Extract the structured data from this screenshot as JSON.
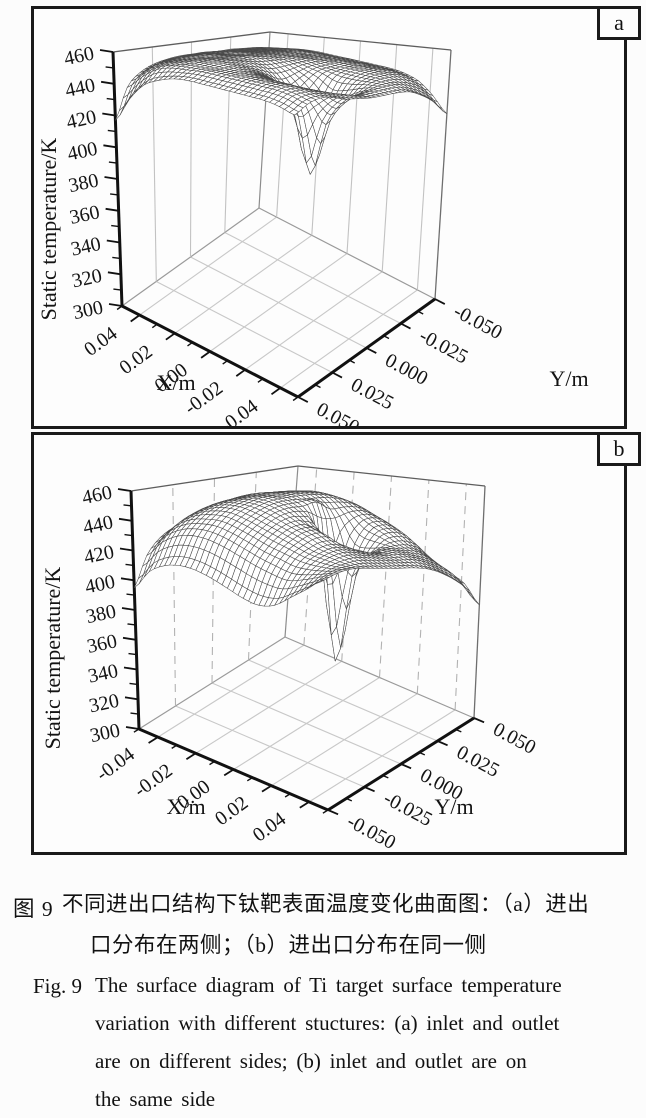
{
  "figure": {
    "panel_a_label": "a",
    "panel_b_label": "b",
    "caption_zh": {
      "label": "图 9",
      "lines": [
        "不同进出口结构下钛靶表面温度变化曲面图：（a）进出",
        "口分布在两侧；（b）进出口分布在同一侧"
      ]
    },
    "caption_en": {
      "label": "Fig. 9",
      "lines": [
        "The surface diagram of Ti target surface temperature",
        "variation with different stuctures: (a) inlet and outlet",
        "are on different sides; (b) inlet and outlet are on",
        "the same side"
      ]
    }
  },
  "chart_data": [
    {
      "type": "surface3d",
      "panel": "a",
      "z_axis": {
        "title": "Static temperature/K",
        "min": 300,
        "max": 460,
        "tick_step": 20,
        "tick_labels": [
          "300",
          "320",
          "340",
          "360",
          "380",
          "400",
          "420",
          "440",
          "460"
        ]
      },
      "x_axis": {
        "title": "X/m",
        "tick_labels": [
          "0.04",
          "0.02",
          "0.00",
          "-0.02",
          "-0.04"
        ],
        "range_left_corner_to_front": [
          0.05,
          -0.05
        ]
      },
      "y_axis": {
        "title": "Y/m",
        "tick_labels": [
          "0.050",
          "0.025",
          "0.000",
          "-0.025",
          "-0.050"
        ],
        "range_front_corner_to_right": [
          0.05,
          -0.05
        ]
      },
      "wall_dash": false,
      "z_grid_note": "temperature K; rows follow X from left corner to front corner, cols follow Y from front corner to right corner; deep funnel dip near x=-0.015,y=0 reaching ~387 K",
      "z_grid": [
        [
          417,
          436,
          444,
          448,
          450,
          451,
          451,
          451,
          450,
          450,
          449,
          448,
          446
        ],
        [
          432,
          444,
          450,
          452,
          453,
          453,
          453,
          453,
          452,
          451,
          450,
          449,
          447
        ],
        [
          442,
          450,
          453,
          454,
          455,
          455,
          454,
          454,
          453,
          452,
          451,
          450,
          448
        ],
        [
          446,
          452,
          454,
          455,
          455,
          455,
          454,
          454,
          453,
          452,
          451,
          450,
          448
        ],
        [
          448,
          452,
          454,
          455,
          455,
          454,
          454,
          453,
          452,
          451,
          450,
          449,
          447
        ],
        [
          448,
          452,
          453,
          454,
          453,
          452,
          450,
          450,
          450,
          450,
          449,
          448,
          446
        ],
        [
          447,
          451,
          452,
          452,
          450,
          446,
          442,
          444,
          447,
          448,
          448,
          447,
          445
        ],
        [
          446,
          450,
          451,
          450,
          446,
          438,
          426,
          436,
          444,
          446,
          447,
          446,
          444
        ],
        [
          445,
          449,
          450,
          448,
          442,
          424,
          387,
          422,
          440,
          445,
          446,
          445,
          443
        ],
        [
          444,
          448,
          449,
          447,
          442,
          431,
          419,
          429,
          440,
          444,
          445,
          444,
          441
        ],
        [
          443,
          447,
          448,
          446,
          443,
          438,
          433,
          436,
          441,
          443,
          443,
          441,
          437
        ],
        [
          441,
          445,
          446,
          445,
          443,
          441,
          439,
          440,
          441,
          441,
          439,
          435,
          429
        ],
        [
          438,
          442,
          444,
          443,
          441,
          440,
          439,
          439,
          439,
          438,
          434,
          428,
          419
        ]
      ]
    },
    {
      "type": "surface3d",
      "panel": "b",
      "z_axis": {
        "title": "Static temperature/K",
        "min": 300,
        "max": 460,
        "tick_step": 20,
        "tick_labels": [
          "300",
          "320",
          "340",
          "360",
          "380",
          "400",
          "420",
          "440",
          "460"
        ]
      },
      "x_axis": {
        "title": "X/m",
        "tick_labels": [
          "-0.04",
          "-0.02",
          "0.00",
          "0.02",
          "0.04"
        ],
        "range_left_corner_to_front": [
          -0.05,
          0.05
        ]
      },
      "y_axis": {
        "title": "Y/m",
        "tick_labels": [
          "-0.050",
          "-0.025",
          "0.000",
          "0.025",
          "0.050"
        ],
        "range_front_corner_to_right": [
          -0.05,
          0.05
        ]
      },
      "wall_dash": true,
      "z_grid_note": "temperature K; dome ~453 K at centre, left corner droops to ~395 K, sharp dip at right corner ~380 K, deep funnel near x=0.01,y=0 reaching ~342 K",
      "z_grid": [
        [
          395,
          414,
          424,
          429,
          432,
          433,
          433,
          432,
          431,
          429,
          426,
          421,
          413
        ],
        [
          408,
          425,
          434,
          439,
          442,
          443,
          444,
          443,
          442,
          440,
          436,
          430,
          421
        ],
        [
          414,
          431,
          440,
          445,
          448,
          449,
          450,
          449,
          448,
          446,
          442,
          435,
          425
        ],
        [
          416,
          433,
          442,
          448,
          451,
          452,
          453,
          452,
          451,
          449,
          445,
          438,
          427
        ],
        [
          415,
          432,
          442,
          448,
          451,
          453,
          453,
          453,
          452,
          450,
          445,
          438,
          427
        ],
        [
          412,
          429,
          439,
          445,
          449,
          451,
          451,
          450,
          449,
          447,
          443,
          436,
          425
        ],
        [
          408,
          425,
          435,
          441,
          445,
          446,
          444,
          438,
          436,
          438,
          437,
          431,
          420
        ],
        [
          404,
          421,
          431,
          437,
          440,
          438,
          424,
          342,
          408,
          428,
          431,
          426,
          415
        ],
        [
          402,
          418,
          428,
          433,
          436,
          434,
          420,
          402,
          414,
          424,
          425,
          420,
          409
        ],
        [
          404,
          416,
          425,
          429,
          431,
          429,
          424,
          418,
          420,
          420,
          418,
          412,
          400
        ],
        [
          410,
          418,
          424,
          427,
          428,
          426,
          423,
          421,
          420,
          417,
          413,
          405,
          395
        ],
        [
          416,
          421,
          424,
          425,
          425,
          423,
          421,
          419,
          417,
          413,
          407,
          400,
          390
        ],
        [
          422,
          424,
          425,
          424,
          422,
          420,
          418,
          416,
          413,
          408,
          401,
          392,
          378
        ]
      ]
    }
  ]
}
